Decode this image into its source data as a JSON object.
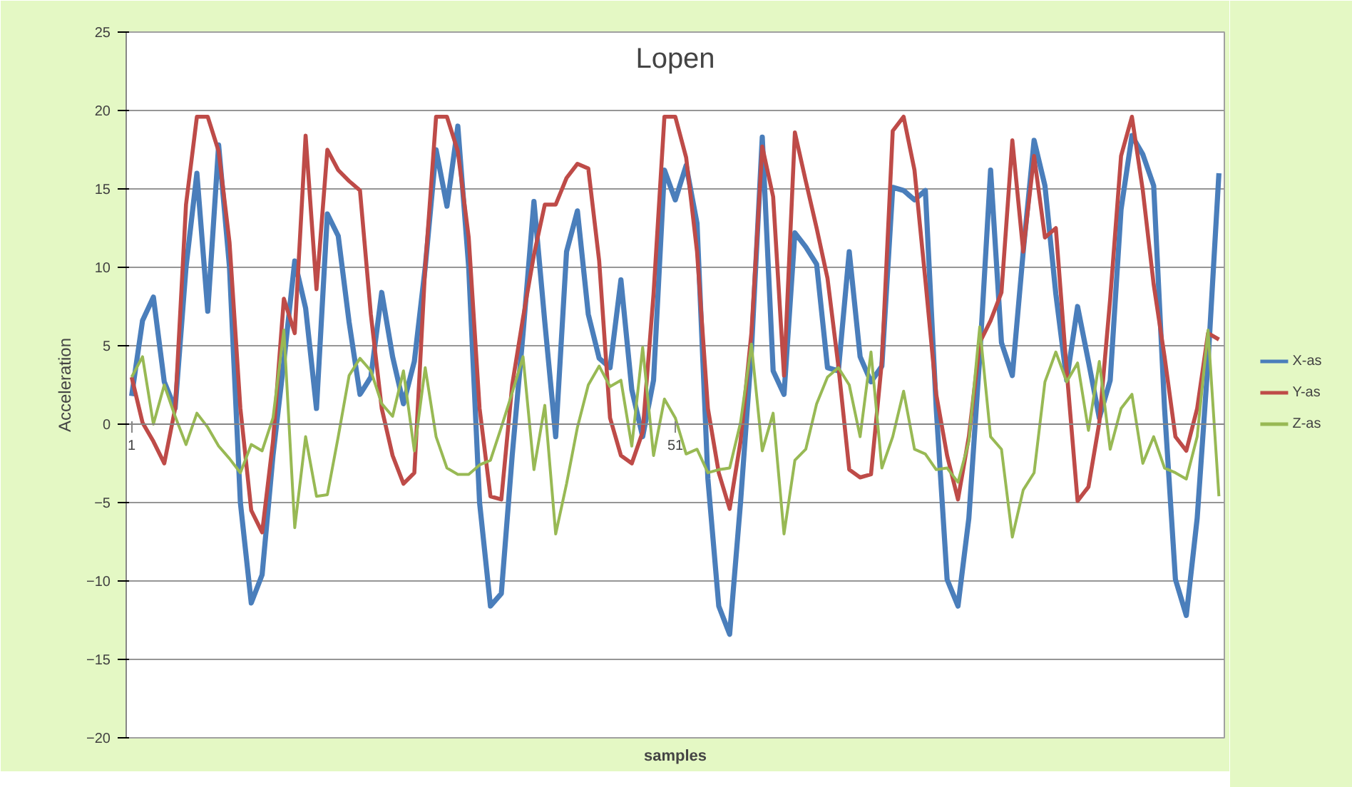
{
  "chart_data": {
    "type": "line",
    "title": "Lopen",
    "xlabel": "samples",
    "ylabel": "Acceleration",
    "categories": [
      "1",
      null,
      null,
      null,
      null,
      null,
      null,
      null,
      null,
      null,
      null,
      null,
      null,
      null,
      null,
      null,
      null,
      null,
      null,
      null,
      null,
      null,
      null,
      null,
      null,
      null,
      null,
      null,
      null,
      null,
      null,
      null,
      null,
      null,
      null,
      null,
      null,
      null,
      null,
      null,
      null,
      null,
      null,
      null,
      null,
      null,
      null,
      null,
      null,
      null,
      "51",
      null,
      null,
      null,
      null,
      null,
      null,
      null,
      null,
      null,
      null,
      null,
      null,
      null,
      null,
      null,
      null,
      null,
      null,
      null,
      null,
      null,
      null,
      null,
      null,
      null,
      null,
      null,
      null,
      null,
      null,
      null,
      null,
      null,
      null,
      null,
      null,
      null,
      null,
      null,
      null,
      null,
      null,
      null,
      null,
      null,
      null,
      null,
      null,
      null,
      null
    ],
    "ylim": [
      -20,
      25
    ],
    "yticks": [
      -20,
      -15,
      -10,
      -5,
      0,
      5,
      10,
      15,
      20,
      25
    ],
    "grid": "y",
    "legend": "right",
    "series": [
      {
        "name": "X-as",
        "color": "#4a7ebb",
        "values": [
          1.8,
          6.6,
          8.1,
          2.7,
          1.0,
          10,
          16,
          7.2,
          17.8,
          10,
          -5,
          -11.4,
          -9.6,
          -2,
          4,
          10.4,
          7.4,
          1,
          13.4,
          12,
          6.5,
          1.9,
          3,
          8.4,
          4.3,
          1.3,
          4,
          10,
          17.5,
          13.9,
          19,
          10,
          -5,
          -11.6,
          -10.8,
          -2,
          5.8,
          14.2,
          6.5,
          -0.8,
          11,
          13.6,
          7,
          4.2,
          3.6,
          9.2,
          2.2,
          -0.8,
          2.8,
          16.2,
          14.3,
          16.5,
          12.8,
          -3.5,
          -11.6,
          -13.4,
          -5,
          4.6,
          18.3,
          3.4,
          1.9,
          12.2,
          11.3,
          10.2,
          3.6,
          3.4,
          11,
          4.3,
          2.7,
          3.7,
          15.1,
          14.9,
          14.3,
          14.9,
          1,
          -9.9,
          -11.6,
          -6,
          4.3,
          16.2,
          5.2,
          3.1,
          11,
          18.1,
          15.2,
          8.3,
          2.8,
          7.5,
          4,
          0.4,
          2.8,
          13.7,
          18.4,
          17.2,
          15.2,
          1,
          -9.9,
          -12.2,
          -6,
          4,
          16
        ]
      },
      {
        "name": "Y-as",
        "color": "#be4b48",
        "values": [
          3,
          0.1,
          -1.1,
          -2.5,
          1,
          14,
          19.6,
          19.6,
          17.4,
          11.6,
          1,
          -5.5,
          -6.9,
          -1.1,
          8,
          5.8,
          18.4,
          8.6,
          17.5,
          16.2,
          15.5,
          14.9,
          7,
          1,
          -2,
          -3.8,
          -3.1,
          10,
          19.6,
          19.6,
          17.4,
          11.9,
          1,
          -4.6,
          -4.8,
          2.5,
          6.8,
          10.8,
          14,
          14,
          15.7,
          16.6,
          16.3,
          10.4,
          0.4,
          -2,
          -2.5,
          -0.5,
          8.3,
          19.6,
          19.6,
          17,
          11,
          1,
          -3.1,
          -5.4,
          -1.1,
          5.8,
          17.7,
          14.5,
          3.1,
          18.6,
          15.5,
          12.5,
          9.3,
          3.7,
          -2.9,
          -3.4,
          -3.2,
          4,
          18.7,
          19.6,
          16.2,
          9.2,
          1.9,
          -2,
          -4.8,
          -0.8,
          5.2,
          6.6,
          8.4,
          18.1,
          11,
          17.1,
          11.9,
          12.5,
          3.4,
          -4.9,
          -4,
          0.1,
          8,
          17.1,
          19.6,
          14.9,
          8.9,
          4.3,
          -0.8,
          -1.7,
          1,
          5.8,
          5.4
        ]
      },
      {
        "name": "Z-as",
        "color": "#98b954",
        "values": [
          3,
          4.3,
          0,
          2.5,
          0.5,
          -1.3,
          0.7,
          -0.2,
          -1.4,
          -2.2,
          -3.1,
          -1.3,
          -1.7,
          0.4,
          6,
          -6.6,
          -0.8,
          -4.6,
          -4.5,
          -0.8,
          3.1,
          4.2,
          3.4,
          1.3,
          0.5,
          3.4,
          -1.7,
          3.6,
          -0.8,
          -2.8,
          -3.2,
          -3.2,
          -2.6,
          -2.3,
          -0.2,
          2,
          4.3,
          -2.9,
          1.2,
          -7,
          -3.8,
          -0.2,
          2.5,
          3.7,
          2.4,
          2.8,
          -1.4,
          4.9,
          -2,
          1.6,
          0.4,
          -1.9,
          -1.6,
          -3.1,
          -2.9,
          -2.8,
          0.1,
          5.1,
          -1.7,
          0.7,
          -7,
          -2.3,
          -1.6,
          1.3,
          3,
          3.6,
          2.5,
          -0.8,
          4.6,
          -2.8,
          -0.8,
          2.1,
          -1.6,
          -1.9,
          -2.9,
          -2.8,
          -3.7,
          -1.1,
          6.2,
          -0.8,
          -1.6,
          -7.2,
          -4.2,
          -3.1,
          2.7,
          4.6,
          2.7,
          3.9,
          -0.4,
          4,
          -1.6,
          1,
          1.9,
          -2.5,
          -0.8,
          -2.8,
          -3.1,
          -3.5,
          -0.8,
          6,
          -4.6
        ]
      }
    ]
  }
}
